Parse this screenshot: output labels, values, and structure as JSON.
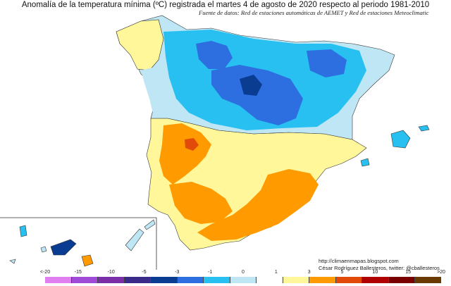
{
  "title": "Anomalía de la temperatura mínima (ºC) registrada el martes 4 de agosto de 2020 respecto al periodo 1981-2010",
  "subtitle": "Fuente de datos: Red de estaciones automáticas de AEMET y Red de estaciones Meteoclimatic",
  "credits": {
    "url": "http://climaenmapas.blogspot.com",
    "author": "César Rodríguez Ballesteros, twitter: @cballesteros"
  },
  "legend": {
    "labels": [
      "<-20",
      "-15",
      "-10",
      "-5",
      "-3",
      "-1",
      "0",
      "1",
      "3",
      "5",
      "10",
      "15",
      ">20"
    ],
    "colors": [
      "#e07ff0",
      "#a04ad8",
      "#7a2ea8",
      "#3a2a8a",
      "#0a3d91",
      "#2d6ee0",
      "#27c0f0",
      "#bfe6f5",
      "#ffffff",
      "#fff79a",
      "#ff9a00",
      "#e24a0a",
      "#b00000",
      "#7a0000",
      "#6b3a00"
    ]
  },
  "map_colors": {
    "land_bg": "#ffffff",
    "strong_cold": "#0a3d91",
    "cold": "#2d6ee0",
    "cool": "#27c0f0",
    "slight_cool": "#bfe6f5",
    "slight_warm": "#fff79a",
    "warm": "#ff9a00",
    "hot": "#e24a0a",
    "border": "#333333"
  }
}
